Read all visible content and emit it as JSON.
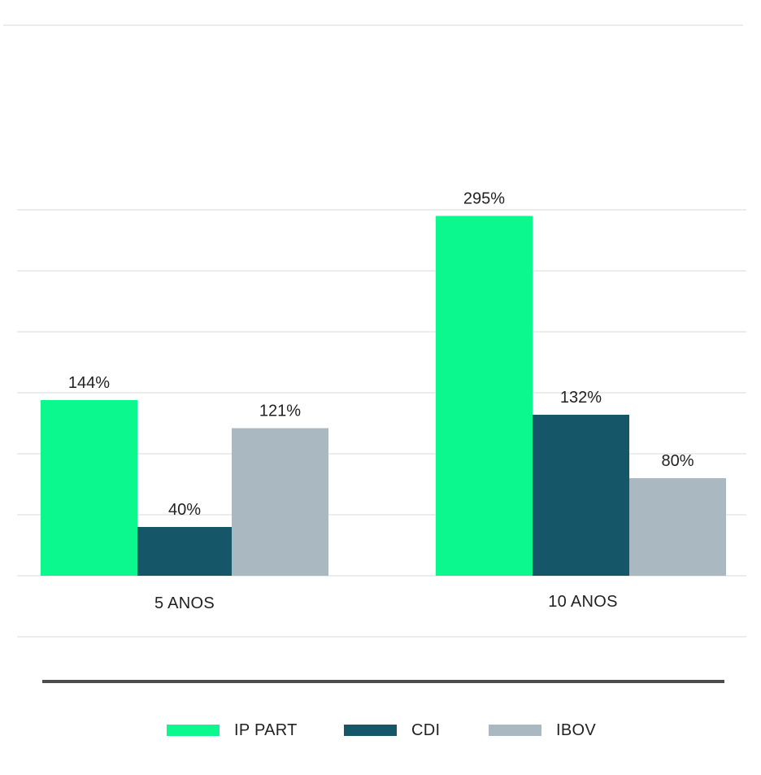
{
  "chart_data": {
    "type": "bar",
    "categories": [
      "5 ANOS",
      "10 ANOS"
    ],
    "series": [
      {
        "name": "IP PART",
        "color": "#0af88e",
        "values": [
          144,
          295
        ],
        "labels": [
          "144%",
          "295%"
        ]
      },
      {
        "name": "CDI",
        "color": "#155768",
        "values": [
          40,
          132
        ],
        "labels": [
          "40%",
          "132%"
        ]
      },
      {
        "name": "IBOV",
        "color": "#a9b8c1",
        "values": [
          121,
          80
        ],
        "labels": [
          "121%",
          "80%"
        ]
      }
    ],
    "ylim": [
      -50,
      350
    ],
    "grid": true,
    "gridlines": [
      -50,
      0,
      50,
      100,
      150,
      200,
      250,
      300
    ],
    "legend_position": "bottom",
    "colors": {
      "grid": "#ececec",
      "separator": "#4d4d4d",
      "text": "#222222"
    }
  }
}
